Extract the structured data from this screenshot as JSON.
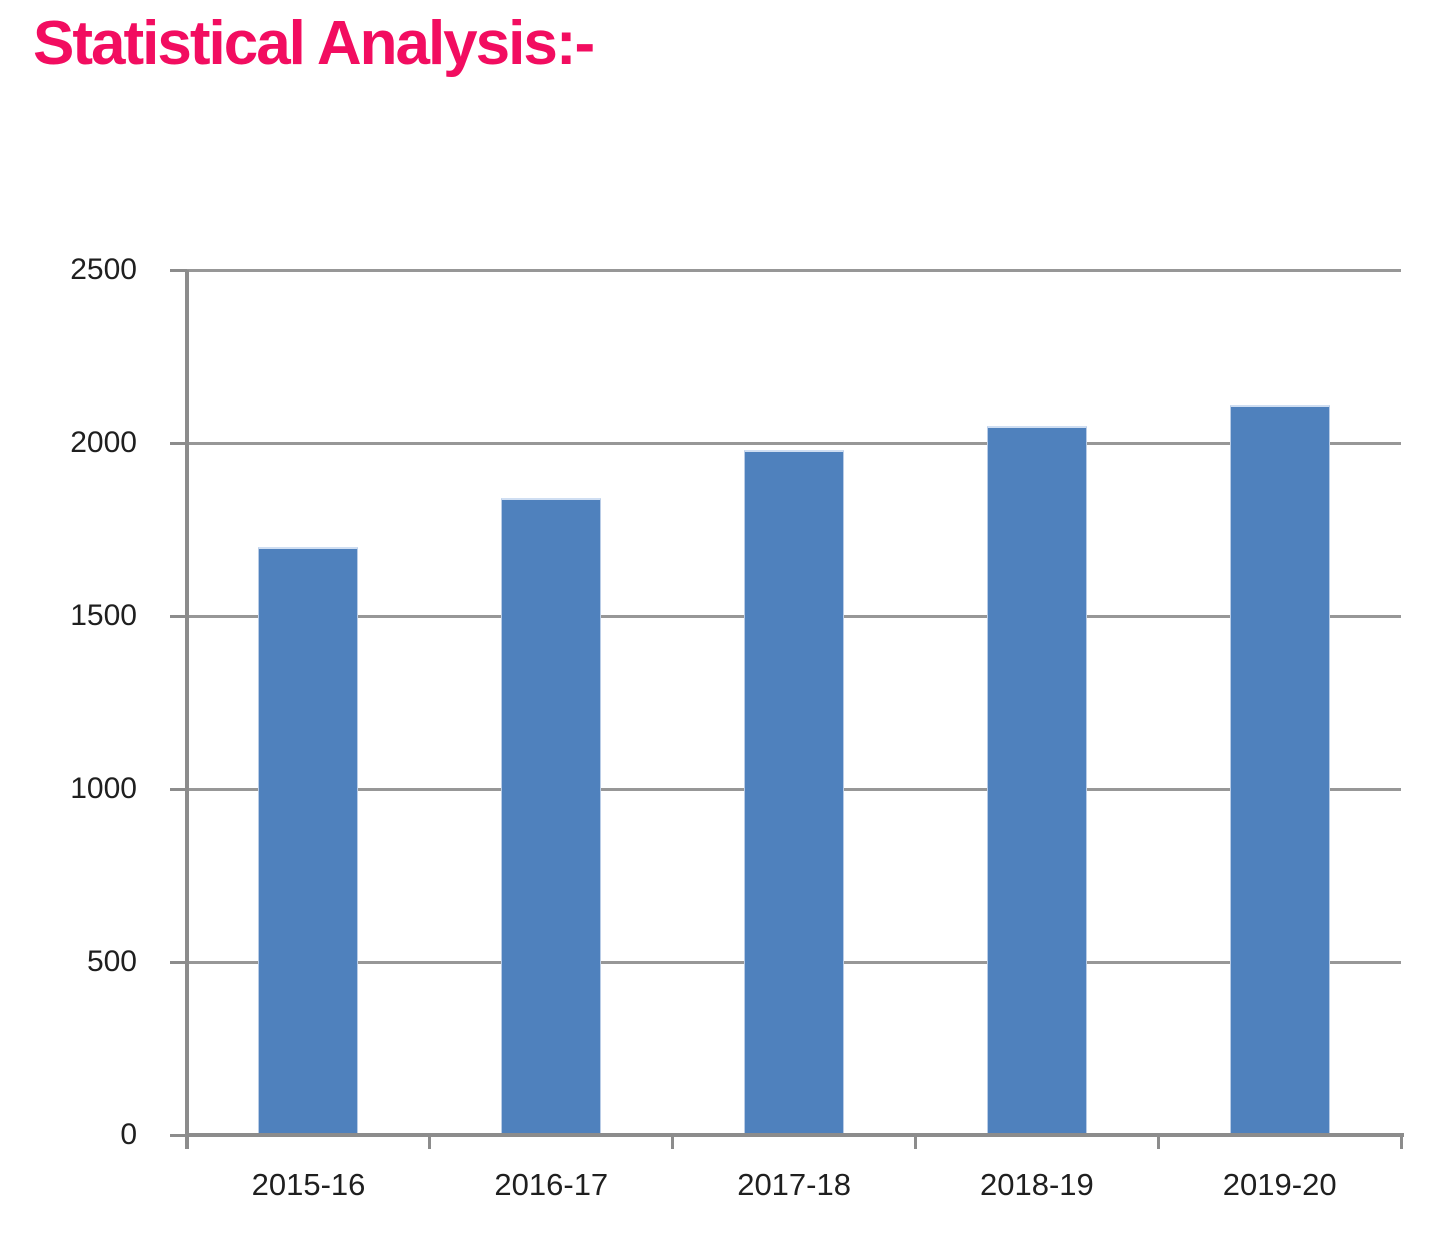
{
  "title": {
    "text": "Statistical Analysis:-",
    "color": "#F20D60"
  },
  "chart_data": {
    "type": "bar",
    "title": "Statistical Analysis:-",
    "categories": [
      "2015-16",
      "2016-17",
      "2017-18",
      "2018-19",
      "2019-20"
    ],
    "values": [
      1700,
      1840,
      1980,
      2050,
      2110
    ],
    "xlabel": "",
    "ylabel": "",
    "ylim": [
      0,
      2500
    ],
    "yticks": [
      0,
      500,
      1000,
      1500,
      2000,
      2500
    ],
    "grid": true,
    "legend": false,
    "bar_color": "#4F81BD",
    "bar_top_highlight": "#CFDEF2",
    "bar_edge_color": "#B9CCE6",
    "gridline_color": "#979797",
    "axis_color": "#8C8C8C",
    "label_color": "#1F1F1F"
  }
}
